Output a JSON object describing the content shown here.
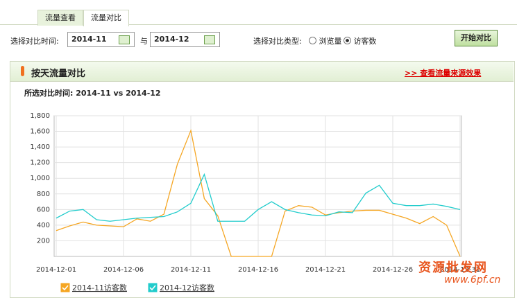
{
  "tabs": [
    "流量查看",
    "流量对比"
  ],
  "filter": {
    "time_label": "选择对比时间:",
    "start": "2014-11",
    "and": "与",
    "end": "2014-12",
    "type_label": "选择对比类型:",
    "options": [
      "浏览量",
      "访客数"
    ],
    "button": "开始对比"
  },
  "panel": {
    "title": "按天流量对比",
    "link": ">> 查看流量来源效果",
    "selected": "所选对比时间: 2014-11 vs 2014-12"
  },
  "chart_data": {
    "type": "line",
    "categories": [
      "2014-12-01",
      null,
      null,
      null,
      null,
      "2014-12-06",
      null,
      null,
      null,
      null,
      "2014-12-11",
      null,
      null,
      null,
      null,
      "2014-12-16",
      null,
      null,
      null,
      null,
      "2014-12-21",
      null,
      null,
      null,
      null,
      "2014-12-26",
      null,
      null,
      null,
      null,
      "2014-12-31"
    ],
    "series": [
      {
        "name": "2014-11访客数",
        "color": "#f5a623",
        "values": [
          330,
          390,
          440,
          400,
          390,
          380,
          480,
          450,
          540,
          1180,
          1610,
          740,
          520,
          0,
          0,
          0,
          0,
          580,
          650,
          630,
          530,
          560,
          580,
          590,
          590,
          540,
          490,
          420,
          510,
          400,
          0
        ]
      },
      {
        "name": "2014-12访客数",
        "color": "#22cccc",
        "values": [
          490,
          580,
          600,
          470,
          450,
          470,
          490,
          500,
          510,
          570,
          680,
          1050,
          450,
          450,
          450,
          600,
          700,
          600,
          560,
          530,
          520,
          570,
          560,
          810,
          910,
          680,
          650,
          650,
          670,
          640,
          600
        ]
      }
    ],
    "ylim": [
      0,
      1800
    ],
    "yticks": [
      200,
      400,
      600,
      800,
      {
        "value": 1000,
        "label": "1,000"
      },
      {
        "value": 1200,
        "label": "1,200"
      },
      {
        "value": 1400,
        "label": "1,400"
      },
      {
        "value": 1600,
        "label": "1,600"
      },
      {
        "value": 1800,
        "label": "1,800"
      }
    ],
    "grid": true
  },
  "watermark": {
    "title": "资源批发网",
    "url": "www.6pf.cn"
  }
}
